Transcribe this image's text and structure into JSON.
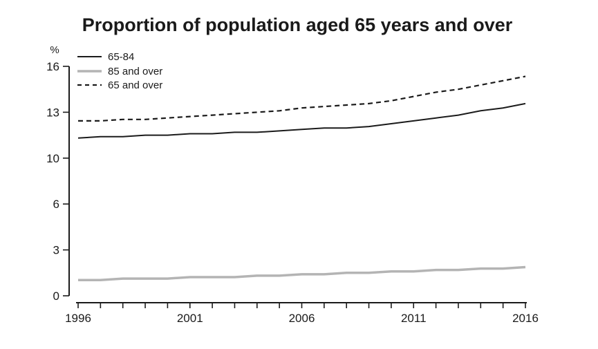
{
  "title": "Proportion of population aged 65 years and over",
  "y_axis": {
    "unit_label": "%",
    "tick_labels": [
      "0",
      "3",
      "6",
      "10",
      "13",
      "16"
    ],
    "tick_values": [
      0,
      3.2,
      6.4,
      9.6,
      12.8,
      16
    ],
    "min": 0,
    "max": 16
  },
  "x_axis": {
    "label_years": [
      1996,
      2001,
      2006,
      2011,
      2016
    ],
    "min": 1996,
    "max": 2016,
    "minor_tick_every_years": 1
  },
  "legend": {
    "items": [
      {
        "label": "65-84",
        "style": "solid-black"
      },
      {
        "label": "85 and over",
        "style": "solid-gray"
      },
      {
        "label": "65 and over",
        "style": "dashed-black"
      }
    ]
  },
  "colors": {
    "line_black": "#1a1a1a",
    "line_gray": "#b4b4b4",
    "background": "#ffffff"
  },
  "chart_data": {
    "type": "line",
    "title": "Proportion of population aged 65 years and over",
    "xlabel": "",
    "ylabel": "%",
    "x": [
      1996,
      1997,
      1998,
      1999,
      2000,
      2001,
      2002,
      2003,
      2004,
      2005,
      2006,
      2007,
      2008,
      2009,
      2010,
      2011,
      2012,
      2013,
      2014,
      2015,
      2016
    ],
    "series": [
      {
        "name": "65-84",
        "line_style": "solid",
        "color": "#1a1a1a",
        "values": [
          11.0,
          11.1,
          11.1,
          11.2,
          11.2,
          11.3,
          11.3,
          11.4,
          11.4,
          11.5,
          11.6,
          11.7,
          11.7,
          11.8,
          12.0,
          12.2,
          12.4,
          12.6,
          12.9,
          13.1,
          13.4
        ]
      },
      {
        "name": "85 and over",
        "line_style": "solid",
        "color": "#b4b4b4",
        "values": [
          1.1,
          1.1,
          1.2,
          1.2,
          1.2,
          1.3,
          1.3,
          1.3,
          1.4,
          1.4,
          1.5,
          1.5,
          1.6,
          1.6,
          1.7,
          1.7,
          1.8,
          1.8,
          1.9,
          1.9,
          2.0
        ]
      },
      {
        "name": "65 and over",
        "line_style": "dashed",
        "color": "#1a1a1a",
        "values": [
          12.2,
          12.2,
          12.3,
          12.3,
          12.4,
          12.5,
          12.6,
          12.7,
          12.8,
          12.9,
          13.1,
          13.2,
          13.3,
          13.4,
          13.6,
          13.9,
          14.2,
          14.4,
          14.7,
          15.0,
          15.3
        ]
      }
    ],
    "ylim": [
      0,
      16
    ],
    "xlim": [
      1996,
      2016
    ],
    "y_tick_display_labels": [
      "0",
      "3",
      "6",
      "10",
      "13",
      "16"
    ],
    "x_tick_labels": [
      "1996",
      "2001",
      "2006",
      "2011",
      "2016"
    ],
    "grid": false,
    "legend_position": "top-left"
  }
}
